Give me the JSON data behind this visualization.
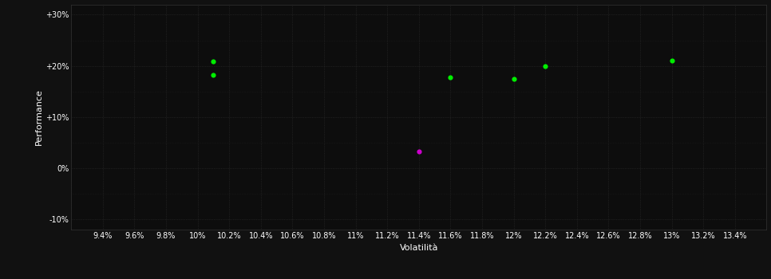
{
  "background_color": "#111111",
  "plot_bg_color": "#0d0d0d",
  "xlabel": "Volatilità",
  "ylabel": "Performance",
  "xlim": [
    0.092,
    0.136
  ],
  "ylim": [
    -0.12,
    0.32
  ],
  "xticks": [
    0.094,
    0.096,
    0.098,
    0.1,
    0.102,
    0.104,
    0.106,
    0.108,
    0.11,
    0.112,
    0.114,
    0.116,
    0.118,
    0.12,
    0.122,
    0.124,
    0.126,
    0.128,
    0.13,
    0.132,
    0.134
  ],
  "xtick_labels": [
    "9.4%",
    "9.6%",
    "9.8%",
    "10%",
    "10.2%",
    "10.4%",
    "10.6%",
    "10.8%",
    "11%",
    "11.2%",
    "11.4%",
    "11.6%",
    "11.8%",
    "12%",
    "12.2%",
    "12.4%",
    "12.6%",
    "12.8%",
    "13%",
    "13.2%",
    "13.4%"
  ],
  "yticks": [
    -0.1,
    0.0,
    0.1,
    0.2,
    0.3
  ],
  "ytick_labels": [
    "-10%",
    "0%",
    "+10%",
    "+20%",
    "+30%"
  ],
  "green_points": [
    [
      0.101,
      0.209
    ],
    [
      0.101,
      0.183
    ],
    [
      0.116,
      0.178
    ],
    [
      0.12,
      0.175
    ],
    [
      0.122,
      0.2
    ],
    [
      0.13,
      0.21
    ]
  ],
  "magenta_points": [
    [
      0.114,
      0.033
    ]
  ],
  "point_size": 20,
  "grid_color": "#2e2e2e",
  "grid_linestyle": ":",
  "tick_color": "white",
  "tick_labelsize": 7,
  "label_fontsize": 8
}
